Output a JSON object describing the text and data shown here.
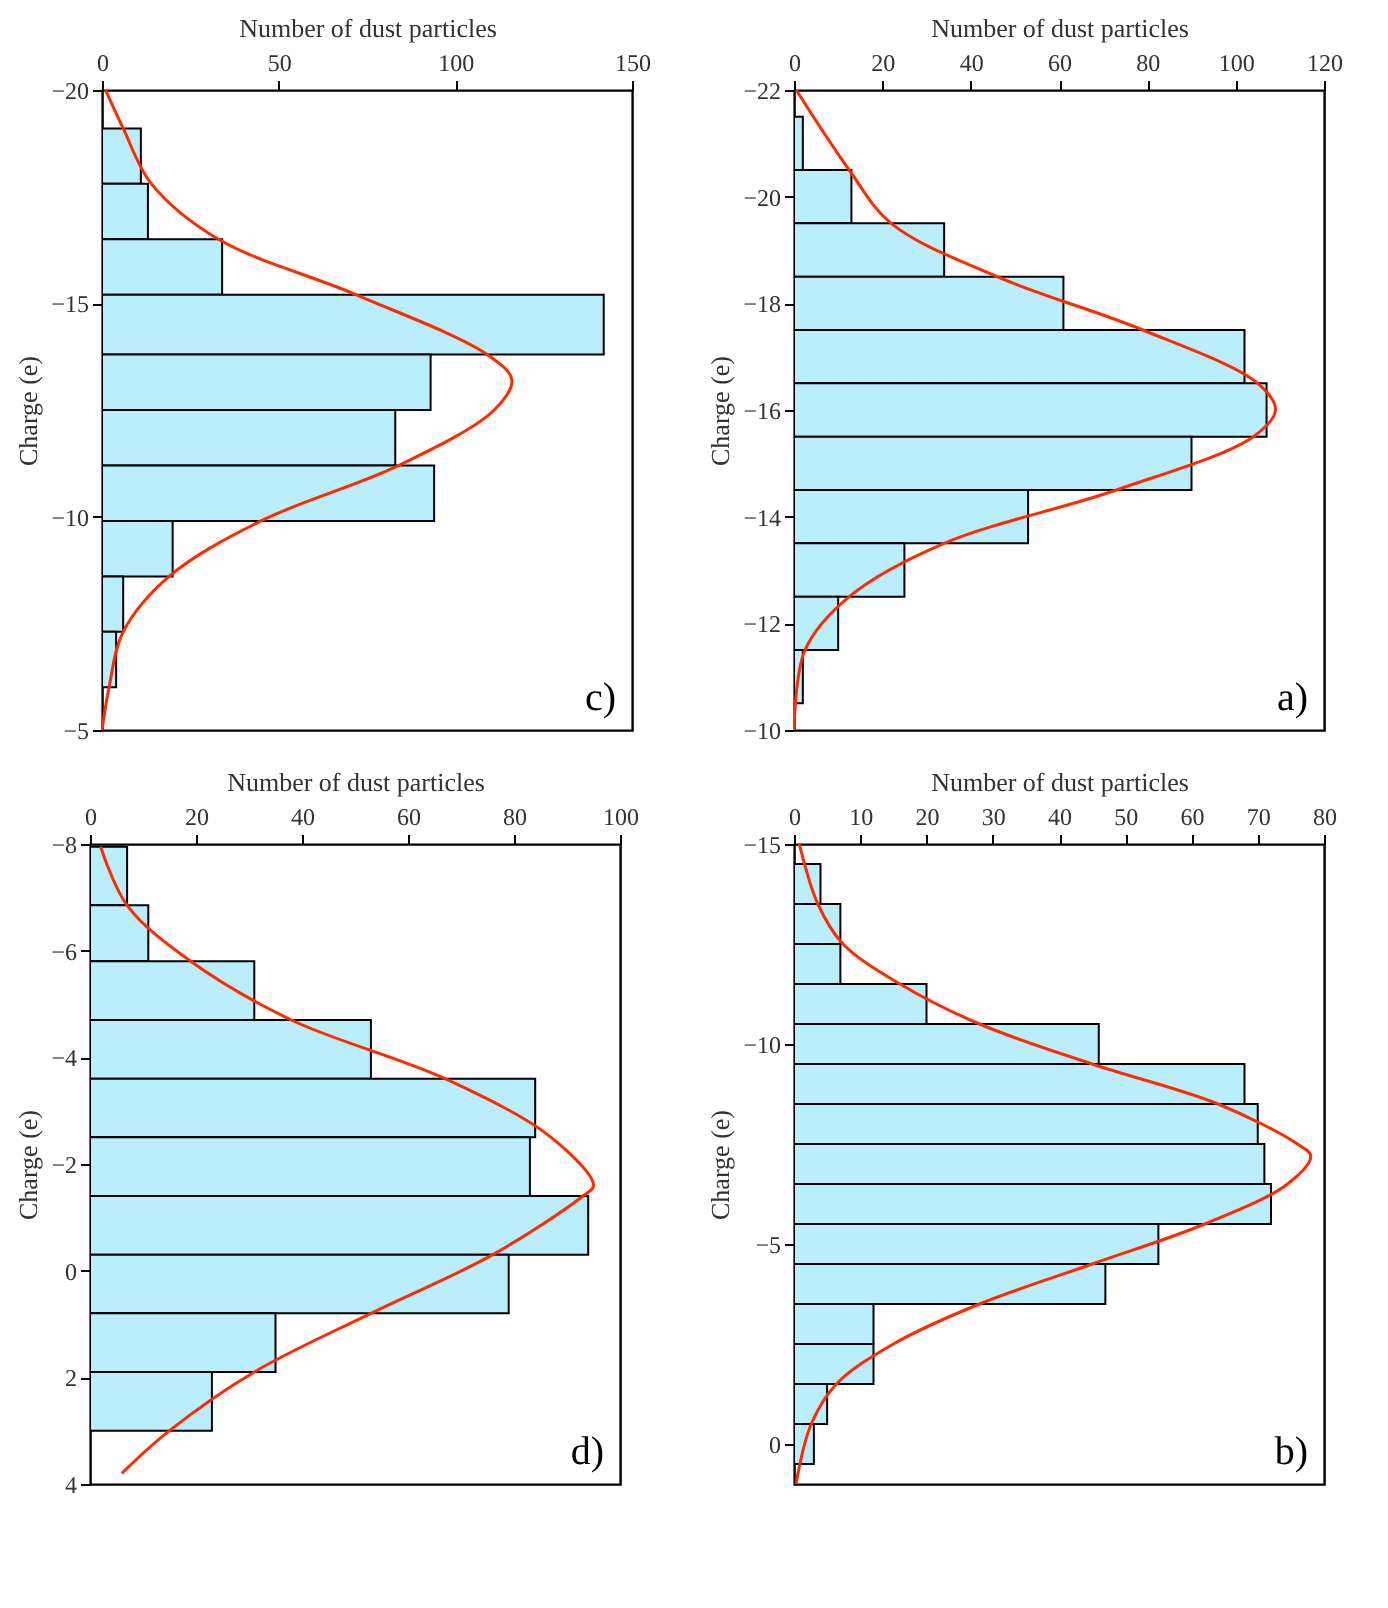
{
  "chart_data": [
    {
      "type": "histogram",
      "orientation": "horizontal",
      "xlabel": "Number of dust particles",
      "ylabel": "Charge (e)",
      "annotations": [
        "c)"
      ],
      "xlim": [
        0,
        150
      ],
      "xticks": [
        0,
        50,
        100,
        150
      ],
      "ylim": [
        -5,
        -20
      ],
      "yticks": [
        -20,
        -15,
        -10,
        -5
      ],
      "bins": [
        -19.1,
        -17.8,
        -16.5,
        -15.2,
        -13.8,
        -12.5,
        -11.2,
        -9.9,
        -8.6,
        -7.3,
        -6.0
      ],
      "series": [
        {
          "color": "#bbeefc",
          "values": [
            11,
            13,
            34,
            142,
            93,
            83,
            94,
            20,
            6,
            4
          ]
        },
        {
          "type": "line",
          "color": "#ff2a00",
          "x": [
            -20,
            -19.1,
            -17.8,
            -16.5,
            -15.2,
            -13.8,
            -13.2,
            -12.5,
            -11.2,
            -9.9,
            -8.6,
            -7.3,
            -6.0,
            -5
          ],
          "values": [
            1,
            6,
            14,
            33,
            72,
            109,
            116,
            111,
            84,
            45,
            19,
            6,
            2,
            0
          ]
        }
      ]
    },
    {
      "type": "histogram",
      "orientation": "horizontal",
      "xlabel": "Number of dust particles",
      "ylabel": "Charge (e)",
      "annotations": [
        "a)"
      ],
      "xlim": [
        0,
        120
      ],
      "xticks": [
        0,
        20,
        40,
        60,
        80,
        100,
        120
      ],
      "ylim": [
        -10,
        -22
      ],
      "yticks": [
        -22,
        -20,
        -18,
        -16,
        -14,
        -12,
        -10
      ],
      "bins": [
        -21.5,
        -20.5,
        -19.5,
        -18.5,
        -17.5,
        -16.5,
        -15.5,
        -14.5,
        -13.5,
        -12.5,
        -11.5,
        -10.5
      ],
      "series": [
        {
          "color": "#bbeefc",
          "values": [
            2,
            13,
            34,
            61,
            102,
            107,
            90,
            53,
            25,
            10,
            2
          ]
        },
        {
          "type": "line",
          "color": "#ff2a00",
          "x": [
            -22,
            -20.5,
            -19.5,
            -18.5,
            -17.5,
            -16.5,
            -16,
            -15.5,
            -14.5,
            -13.5,
            -12.5,
            -11.5,
            -10
          ],
          "values": [
            0.5,
            12.5,
            22,
            46,
            79,
            105,
            109,
            104,
            73,
            34,
            12.5,
            2.5,
            0
          ]
        }
      ]
    },
    {
      "type": "histogram",
      "orientation": "horizontal",
      "xlabel": "Number of dust particles",
      "ylabel": "Charge (e)",
      "annotations": [
        "d)"
      ],
      "xlim": [
        0,
        100
      ],
      "xticks": [
        0,
        20,
        40,
        60,
        80,
        100
      ],
      "ylim": [
        4,
        -8
      ],
      "yticks": [
        -8,
        -6,
        -4,
        -2,
        0,
        2,
        4
      ],
      "bins": [
        -7.95,
        -6.85,
        -5.8,
        -4.7,
        -3.6,
        -2.5,
        -1.4,
        -0.3,
        0.8,
        1.9,
        3.0
      ],
      "series": [
        {
          "color": "#bbeefc",
          "values": [
            7,
            11,
            31,
            53,
            84,
            83,
            94,
            79,
            35,
            23
          ]
        },
        {
          "type": "line",
          "color": "#ff2a00",
          "x": [
            -7.95,
            -6.85,
            -5.8,
            -4.7,
            -3.6,
            -2.5,
            -1.6,
            -1.4,
            -0.3,
            0.8,
            1.9,
            3.0,
            3.8
          ],
          "values": [
            2,
            7,
            19,
            38,
            67,
            87,
            95,
            93,
            76,
            53,
            31,
            15,
            6
          ]
        }
      ]
    },
    {
      "type": "histogram",
      "orientation": "horizontal",
      "xlabel": "Number of dust particles",
      "ylabel": "Charge (e)",
      "annotations": [
        "b)"
      ],
      "xlim": [
        0,
        80
      ],
      "xticks": [
        0,
        10,
        20,
        30,
        40,
        50,
        60,
        70,
        80
      ],
      "ylim": [
        1,
        -15
      ],
      "yticks": [
        -15,
        -10,
        -5,
        0
      ],
      "bins": [
        -14.5,
        -13.5,
        -12.5,
        -11.5,
        -10.5,
        -9.5,
        -8.5,
        -7.5,
        -6.5,
        -5.5,
        -4.5,
        -3.5,
        -2.5,
        -1.5,
        -0.5,
        0.5
      ],
      "series": [
        {
          "color": "#bbeefc",
          "values": [
            4,
            7,
            7,
            20,
            46,
            68,
            70,
            71,
            72,
            55,
            47,
            12,
            12,
            5,
            3
          ]
        },
        {
          "type": "line",
          "color": "#ff2a00",
          "x": [
            -15,
            -13.5,
            -12.5,
            -11.5,
            -10.5,
            -9.5,
            -8.5,
            -7.5,
            -7.2,
            -6.5,
            -5.5,
            -4.5,
            -3.5,
            -2.5,
            -1.5,
            -0.5,
            1
          ],
          "values": [
            0.8,
            3.6,
            7.4,
            16,
            28,
            45,
            64,
            76,
            78,
            74.5,
            62,
            45,
            28,
            15,
            6.4,
            2.6,
            0.3
          ]
        }
      ]
    }
  ]
}
